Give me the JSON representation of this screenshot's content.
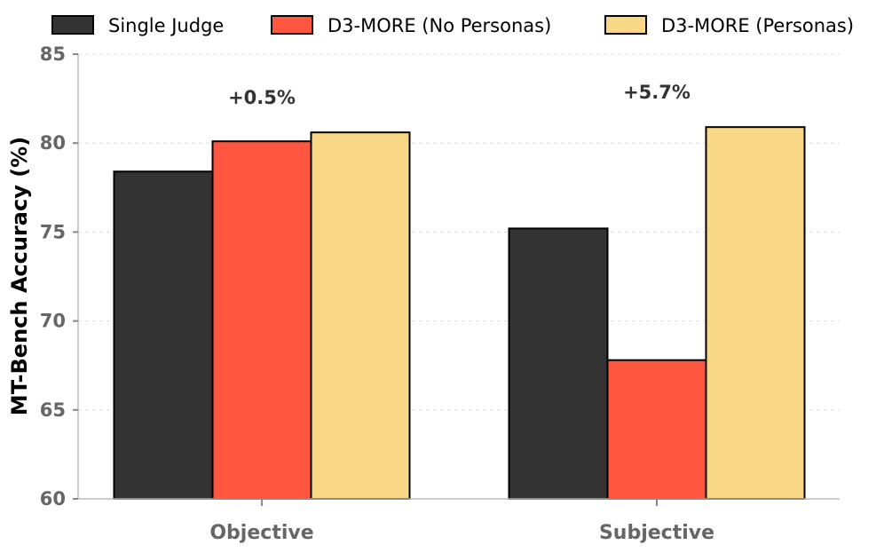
{
  "chart_data": {
    "type": "bar",
    "title": "",
    "xlabel": "",
    "ylabel": "MT-Bench Accuracy (%)",
    "ylim": [
      60,
      85
    ],
    "yticks": [
      60,
      65,
      70,
      75,
      80,
      85
    ],
    "grid": true,
    "legend_position": "top",
    "categories": [
      "Objective",
      "Subjective"
    ],
    "series": [
      {
        "name": "Single Judge",
        "color": "#333333",
        "values": [
          78.4,
          75.2
        ]
      },
      {
        "name": "D3-MORE (No Personas)",
        "color": "#FF5640",
        "values": [
          80.1,
          67.8
        ]
      },
      {
        "name": "D3-MORE (Personas)",
        "color": "#F8D886",
        "values": [
          80.6,
          80.9
        ]
      }
    ],
    "annotations": [
      {
        "category": "Objective",
        "text": "+0.5%",
        "y": 82.2
      },
      {
        "category": "Subjective",
        "text": "+5.7%",
        "y": 82.5
      }
    ]
  }
}
